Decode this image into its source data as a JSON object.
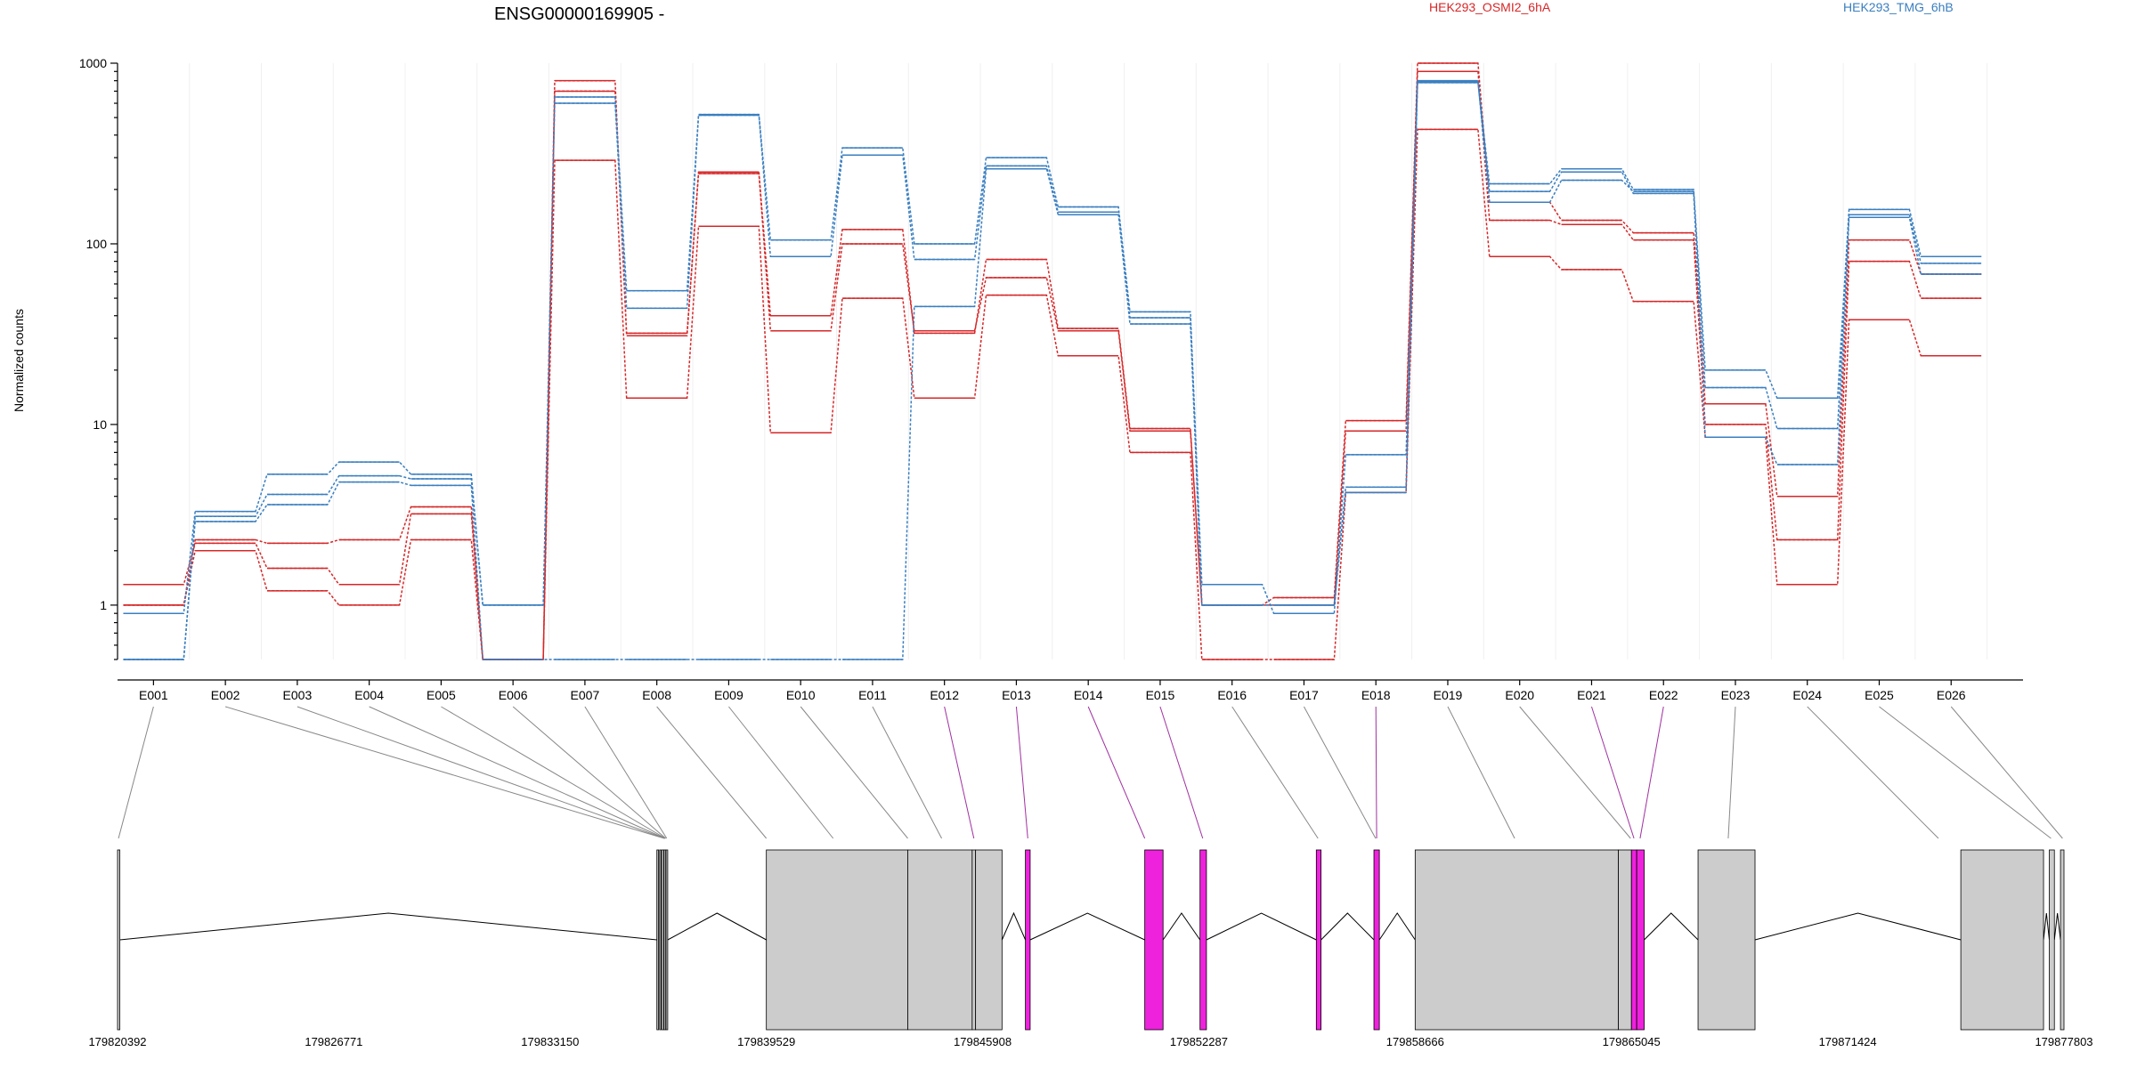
{
  "chart_data": {
    "type": "line",
    "title": "ENSG00000169905 -",
    "ylabel": "Normalized counts",
    "yscale": "log",
    "ylim": [
      0.5,
      1000
    ],
    "yticks": [
      "1",
      "10",
      "100",
      "1000"
    ],
    "categories": [
      "E001",
      "E002",
      "E003",
      "E004",
      "E005",
      "E006",
      "E007",
      "E008",
      "E009",
      "E010",
      "E011",
      "E012",
      "E013",
      "E014",
      "E015",
      "E016",
      "E017",
      "E018",
      "E019",
      "E020",
      "E021",
      "E022",
      "E023",
      "E024",
      "E025",
      "E026"
    ],
    "legend": [
      {
        "label": "HEK293_OSMI2_6hA",
        "color": "#d62728"
      },
      {
        "label": "HEK293_TMG_6hB",
        "color": "#3a7fc0"
      }
    ],
    "series": [
      {
        "color": "#d62728",
        "values": [
          1.0,
          2.3,
          2.2,
          2.3,
          3.5,
          0.5,
          800,
          31,
          250,
          40,
          120,
          32,
          82,
          34,
          9.5,
          1.0,
          1.1,
          10.5,
          1000,
          170,
          135,
          115,
          13,
          4.0,
          105,
          68
        ]
      },
      {
        "color": "#d62728",
        "values": [
          1.3,
          2.2,
          1.6,
          1.3,
          3.2,
          0.5,
          700,
          32,
          245,
          33,
          100,
          33,
          65,
          33,
          9.2,
          1.0,
          1.0,
          9.2,
          900,
          135,
          128,
          105,
          10,
          2.3,
          80,
          50
        ]
      },
      {
        "color": "#d62728",
        "values": [
          1.0,
          2.0,
          1.2,
          1.0,
          2.3,
          0.5,
          290,
          14,
          125,
          9.0,
          50,
          14,
          52,
          24,
          7.0,
          0.5,
          0.5,
          4.2,
          430,
          85,
          72,
          48,
          8.5,
          1.3,
          38,
          24
        ]
      },
      {
        "color": "#3a7fc0",
        "values": [
          0.9,
          3.3,
          5.3,
          6.2,
          5.3,
          1.0,
          650,
          55,
          520,
          105,
          340,
          100,
          300,
          160,
          42,
          1.3,
          0.9,
          6.8,
          800,
          215,
          260,
          200,
          20,
          14,
          155,
          85
        ]
      },
      {
        "color": "#3a7fc0",
        "values": [
          0.5,
          3.1,
          4.1,
          5.2,
          5.0,
          1.0,
          600,
          44,
          515,
          85,
          310,
          82,
          270,
          150,
          39,
          1.0,
          1.0,
          4.5,
          780,
          195,
          250,
          190,
          16,
          9.5,
          145,
          78
        ]
      },
      {
        "color": "#3a7fc0",
        "values": [
          0.5,
          2.9,
          3.6,
          4.8,
          4.6,
          0.5,
          0.5,
          0.5,
          0.5,
          0.5,
          0.5,
          45,
          260,
          145,
          36,
          1.0,
          1.0,
          4.2,
          790,
          170,
          225,
          195,
          8.5,
          6.0,
          140,
          68
        ]
      }
    ]
  },
  "gene_model": {
    "coordinates": [
      "179820392",
      "179826771",
      "179833150",
      "179839529",
      "179845908",
      "179852287",
      "179858666",
      "179865045",
      "179871424",
      "179877803"
    ],
    "genomic_range": [
      179820392,
      179877803
    ],
    "exon_color": "#cccccc",
    "highlight_color": "#ee22dd",
    "highlighted_exons": [
      "E012",
      "E013",
      "E014",
      "E015",
      "E018",
      "E021",
      "E022"
    ],
    "exons": [
      {
        "start": 179820392,
        "end": 179820460
      },
      {
        "start": 179836300,
        "end": 179836350
      },
      {
        "start": 179836380,
        "end": 179836420
      },
      {
        "start": 179836440,
        "end": 179836500
      },
      {
        "start": 179836510,
        "end": 179836560
      },
      {
        "start": 179836570,
        "end": 179836620
      },
      {
        "start": 179839529,
        "end": 179843700
      },
      {
        "start": 179843700,
        "end": 179845600
      },
      {
        "start": 179845600,
        "end": 179845700
      },
      {
        "start": 179845700,
        "end": 179846480
      },
      {
        "start": 179847170,
        "end": 179847310,
        "highlight": true
      },
      {
        "start": 179850690,
        "end": 179851230,
        "highlight": true
      },
      {
        "start": 179852320,
        "end": 179852510,
        "highlight": true
      },
      {
        "start": 179855750,
        "end": 179855890,
        "highlight": true
      },
      {
        "start": 179857450,
        "end": 179857610,
        "highlight": true
      },
      {
        "start": 179858666,
        "end": 179864660
      },
      {
        "start": 179864660,
        "end": 179865045
      },
      {
        "start": 179865045,
        "end": 179865200,
        "highlight": true
      },
      {
        "start": 179865200,
        "end": 179865420,
        "highlight": true
      },
      {
        "start": 179867010,
        "end": 179868690
      },
      {
        "start": 179874760,
        "end": 179877200
      },
      {
        "start": 179877370,
        "end": 179877520
      },
      {
        "start": 179877700,
        "end": 179877803
      }
    ],
    "links": [
      179820420,
      179836520,
      179836530,
      179836540,
      179836550,
      179836560,
      179836590,
      179839529,
      179841500,
      179843700,
      179844700,
      179845650,
      179847240,
      179850690,
      179852400,
      179855800,
      179857500,
      179857530,
      179861600,
      179865020,
      179865120,
      179865300,
      179867900,
      179874100,
      179877420,
      179877760
    ]
  }
}
